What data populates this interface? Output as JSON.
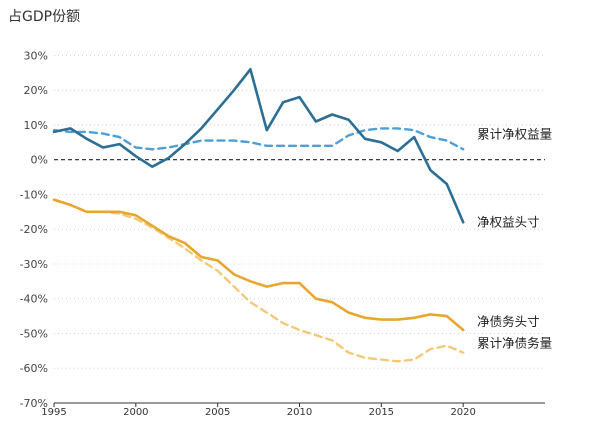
{
  "chart_data": {
    "type": "line",
    "ylabel": "占GDP份额",
    "xlabel": "",
    "xlim": [
      1995,
      2025
    ],
    "ylim": [
      -70,
      33
    ],
    "x_ticks": [
      1995,
      2000,
      2005,
      2010,
      2015,
      2020
    ],
    "x_tick_labels": [
      "1995",
      "2000",
      "2005",
      "2010",
      "2015",
      "2020"
    ],
    "y_ticks": [
      30,
      20,
      10,
      0,
      -10,
      -20,
      -30,
      -40,
      -50,
      -60,
      -70
    ],
    "y_tick_labels": [
      "30%",
      "20%",
      "10%",
      "0%",
      "-10%",
      "-20%",
      "-30%",
      "-40%",
      "-50%",
      "-60%",
      "-70%"
    ],
    "grid": "horizontal dotted",
    "zero_line": "dashed",
    "series": [
      {
        "name": "净权益头寸",
        "style": "solid",
        "color": "#2c6e94",
        "x": [
          1995,
          1996,
          1997,
          1998,
          1999,
          2000,
          2001,
          2002,
          2003,
          2004,
          2005,
          2006,
          2007,
          2008,
          2009,
          2010,
          2011,
          2012,
          2013,
          2014,
          2015,
          2016,
          2017,
          2018,
          2019,
          2020
        ],
        "values": [
          8,
          9,
          6,
          3.5,
          4.5,
          1,
          -2,
          0.5,
          4.5,
          9,
          14.5,
          20,
          26,
          8.5,
          16.5,
          18,
          11,
          13,
          11.5,
          6,
          5,
          2.5,
          6.5,
          -3,
          -7,
          -18
        ]
      },
      {
        "name": "累计净权益量",
        "style": "dashed",
        "color": "#4d9fd4",
        "x": [
          1995,
          1996,
          1997,
          1998,
          1999,
          2000,
          2001,
          2002,
          2003,
          2004,
          2005,
          2006,
          2007,
          2008,
          2009,
          2010,
          2011,
          2012,
          2013,
          2014,
          2015,
          2016,
          2017,
          2018,
          2019,
          2020
        ],
        "values": [
          8.5,
          8,
          8,
          7.5,
          6.5,
          3.5,
          3,
          3.5,
          4.5,
          5.5,
          5.5,
          5.5,
          5,
          4,
          4,
          4,
          4,
          4,
          7,
          8.5,
          9,
          9,
          8.5,
          6.5,
          5.5,
          3
        ]
      },
      {
        "name": "净债务头寸",
        "style": "solid",
        "color": "#e8a630",
        "x": [
          1995,
          1996,
          1997,
          1998,
          1999,
          2000,
          2001,
          2002,
          2003,
          2004,
          2005,
          2006,
          2007,
          2008,
          2009,
          2010,
          2011,
          2012,
          2013,
          2014,
          2015,
          2016,
          2017,
          2018,
          2019,
          2020
        ],
        "values": [
          -11.5,
          -13,
          -15,
          -15,
          -15,
          -16,
          -19,
          -22,
          -24,
          -28,
          -29,
          -33,
          -35,
          -36.5,
          -35.5,
          -35.5,
          -40,
          -41,
          -44,
          -45.5,
          -46,
          -46,
          -45.5,
          -44.5,
          -45,
          -49
        ]
      },
      {
        "name": "累计净债务量",
        "style": "dashed",
        "color": "#f2c97a",
        "x": [
          1995,
          1996,
          1997,
          1998,
          1999,
          2000,
          2001,
          2002,
          2003,
          2004,
          2005,
          2006,
          2007,
          2008,
          2009,
          2010,
          2011,
          2012,
          2013,
          2014,
          2015,
          2016,
          2017,
          2018,
          2019,
          2020
        ],
        "values": [
          -11.5,
          -13,
          -15,
          -15,
          -15.5,
          -17,
          -19.5,
          -22.5,
          -25.5,
          -29,
          -32,
          -36.5,
          -41,
          -44,
          -47,
          -49,
          -50.5,
          -52,
          -55.5,
          -57,
          -57.5,
          -58,
          -57.5,
          -54.5,
          -53.5,
          -55.5
        ]
      }
    ]
  }
}
